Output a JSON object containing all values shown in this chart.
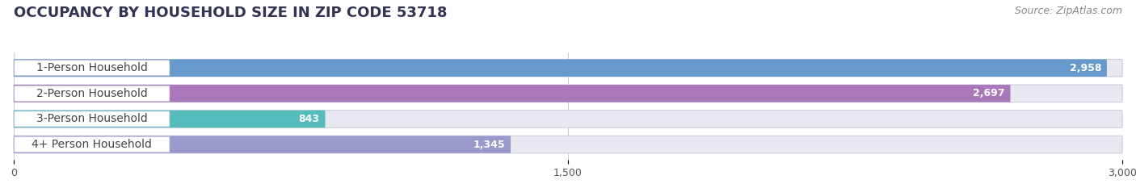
{
  "title": "OCCUPANCY BY HOUSEHOLD SIZE IN ZIP CODE 53718",
  "source": "Source: ZipAtlas.com",
  "categories": [
    "1-Person Household",
    "2-Person Household",
    "3-Person Household",
    "4+ Person Household"
  ],
  "values": [
    2958,
    2697,
    843,
    1345
  ],
  "bar_colors": [
    "#6699cc",
    "#aa77bb",
    "#55bbbb",
    "#9999cc"
  ],
  "xlim": [
    0,
    3000
  ],
  "xticks": [
    0,
    1500,
    3000
  ],
  "xtick_labels": [
    "0",
    "1,500",
    "3,000"
  ],
  "background_color": "#ffffff",
  "bar_background_color": "#e8e8f0",
  "label_box_color": "#ffffff",
  "title_fontsize": 13,
  "source_fontsize": 9,
  "label_fontsize": 10,
  "value_fontsize": 9,
  "tick_fontsize": 9,
  "title_color": "#333355",
  "label_text_color": "#444444",
  "value_text_color": "#ffffff"
}
